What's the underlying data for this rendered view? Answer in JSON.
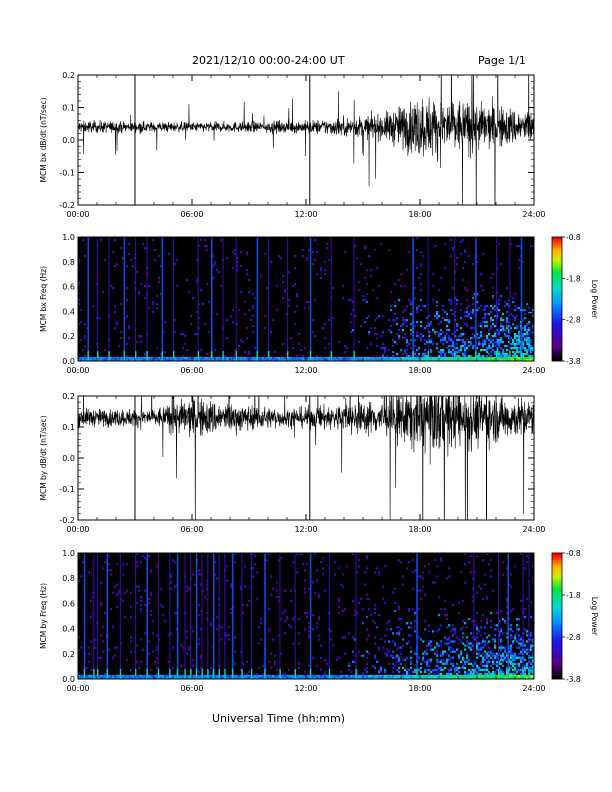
{
  "header": {
    "date_range": "2021/12/10  00:00-24:00 UT",
    "page": "Page 1/1"
  },
  "footer": {
    "xlabel": "Universal Time (hh:mm)"
  },
  "chart_data": [
    {
      "type": "line",
      "ylabel": "MCM bx dB/dt (nT/sec)",
      "xlim": [
        0,
        24
      ],
      "ylim": [
        -0.2,
        0.2
      ],
      "x_ticks": [
        "00:00",
        "06:00",
        "12:00",
        "18:00",
        "24:00"
      ],
      "y_ticks": [
        "-0.2",
        "-0.1",
        "0.0",
        "0.1",
        "0.2"
      ],
      "baseline": 0.04,
      "spikes_hours": [
        3.0,
        12.2
      ],
      "activity_envelope": [
        [
          0,
          0.02
        ],
        [
          6,
          0.015
        ],
        [
          12,
          0.02
        ],
        [
          16,
          0.04
        ],
        [
          18,
          0.1
        ],
        [
          20,
          0.09
        ],
        [
          22,
          0.07
        ],
        [
          24,
          0.05
        ]
      ]
    },
    {
      "type": "heatmap",
      "ylabel": "MCM bx Freq (Hz)",
      "xlim": [
        0,
        24
      ],
      "ylim": [
        0.0,
        1.0
      ],
      "x_ticks": [
        "00:00",
        "06:00",
        "12:00",
        "18:00",
        "24:00"
      ],
      "y_ticks": [
        "0.0",
        "0.2",
        "0.4",
        "0.6",
        "0.8",
        "1.0"
      ],
      "colorbar_label": "Log Power",
      "colorbar_ticks": [
        "-0.8",
        "-1.8",
        "-2.8",
        "-3.8"
      ],
      "color_range": [
        -3.8,
        -0.8
      ],
      "vertical_streaks_hours": [
        0.5,
        1.0,
        1.6,
        2.4,
        3.0,
        3.6,
        4.4,
        5.0,
        6.3,
        7.0,
        7.6,
        8.3,
        9.4,
        10.0,
        11.0,
        12.2,
        13.3,
        14.5,
        17.6,
        18.4,
        19.8,
        20.9,
        22.0,
        22.7,
        23.3
      ]
    },
    {
      "type": "line",
      "ylabel": "MCM by dB/dt (nT/sec)",
      "xlim": [
        0,
        24
      ],
      "ylim": [
        -0.2,
        0.2
      ],
      "x_ticks": [
        "00:00",
        "06:00",
        "12:00",
        "18:00",
        "24:00"
      ],
      "y_ticks": [
        "-0.2",
        "-0.1",
        "0.0",
        "0.1",
        "0.2"
      ],
      "baseline": 0.13,
      "spikes_hours": [
        3.0,
        12.2,
        21.5
      ],
      "activity_envelope": [
        [
          0,
          0.03
        ],
        [
          4,
          0.03
        ],
        [
          6,
          0.07
        ],
        [
          8,
          0.05
        ],
        [
          11,
          0.03
        ],
        [
          16,
          0.06
        ],
        [
          18,
          0.12
        ],
        [
          20,
          0.11
        ],
        [
          22,
          0.08
        ],
        [
          24,
          0.06
        ]
      ]
    },
    {
      "type": "heatmap",
      "ylabel": "MCM by Freq (Hz)",
      "xlim": [
        0,
        24
      ],
      "ylim": [
        0.0,
        1.0
      ],
      "x_ticks": [
        "00:00",
        "06:00",
        "12:00",
        "18:00",
        "24:00"
      ],
      "y_ticks": [
        "0.0",
        "0.2",
        "0.4",
        "0.6",
        "0.8",
        "1.0"
      ],
      "colorbar_label": "Log Power",
      "colorbar_ticks": [
        "-0.8",
        "-1.8",
        "-2.8",
        "-3.8"
      ],
      "color_range": [
        -3.8,
        -0.8
      ],
      "vertical_streaks_hours": [
        0.3,
        0.8,
        1.0,
        1.5,
        2.2,
        3.0,
        3.6,
        4.2,
        4.8,
        5.2,
        5.6,
        5.9,
        6.2,
        6.5,
        6.8,
        7.1,
        7.4,
        7.7,
        8.1,
        8.6,
        9.1,
        9.8,
        10.6,
        11.4,
        12.2,
        13.2,
        14.6,
        17.8,
        20.8,
        22.1,
        22.6,
        23.4,
        23.7
      ]
    }
  ]
}
